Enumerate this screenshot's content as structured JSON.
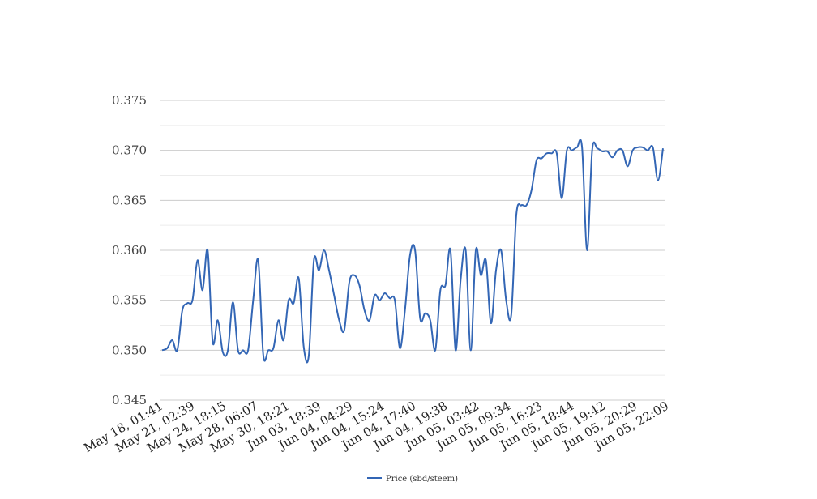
{
  "chart_data": {
    "type": "line",
    "title": "",
    "xlabel": "",
    "ylabel": "",
    "ylim": [
      0.345,
      0.375
    ],
    "y_ticks": [
      "0.345",
      "0.350",
      "0.355",
      "0.360",
      "0.365",
      "0.370",
      "0.375"
    ],
    "x_tick_labels": [
      "May 18, 01:41",
      "May 21, 02:39",
      "May 24, 18:15",
      "May 28, 06:07",
      "May 30, 18:21",
      "Jun 03, 18:39",
      "Jun 04, 04:29",
      "Jun 04, 15:24",
      "Jun 04, 17:40",
      "Jun 04, 19:38",
      "Jun 05, 03:42",
      "Jun 05, 09:34",
      "Jun 05, 16:23",
      "Jun 05, 18:44",
      "Jun 05, 19:42",
      "Jun 05, 20:29",
      "Jun 05, 22:09"
    ],
    "grid": true,
    "legend_position": "bottom",
    "series": [
      {
        "name": "Price (sbd/steem)",
        "color": "#3366b5",
        "values": [
          0.35,
          0.3502,
          0.351,
          0.35,
          0.354,
          0.3547,
          0.355,
          0.359,
          0.356,
          0.36,
          0.3508,
          0.353,
          0.3498,
          0.35,
          0.3548,
          0.35,
          0.35,
          0.35,
          0.355,
          0.359,
          0.3495,
          0.35,
          0.3502,
          0.353,
          0.351,
          0.355,
          0.3547,
          0.3572,
          0.3503,
          0.3495,
          0.359,
          0.358,
          0.36,
          0.358,
          0.3555,
          0.353,
          0.352,
          0.3568,
          0.3575,
          0.3565,
          0.354,
          0.353,
          0.3555,
          0.355,
          0.3557,
          0.3552,
          0.355,
          0.3502,
          0.354,
          0.3595,
          0.36,
          0.3532,
          0.3537,
          0.353,
          0.35,
          0.356,
          0.3565,
          0.36,
          0.35,
          0.357,
          0.36,
          0.35,
          0.36,
          0.3575,
          0.359,
          0.3527,
          0.358,
          0.36,
          0.355,
          0.3535,
          0.3635,
          0.3645,
          0.3645,
          0.366,
          0.369,
          0.3692,
          0.3697,
          0.3697,
          0.3697,
          0.3652,
          0.37,
          0.37,
          0.3703,
          0.3703,
          0.36,
          0.37,
          0.3702,
          0.3699,
          0.3699,
          0.3693,
          0.37,
          0.37,
          0.3684,
          0.37,
          0.3703,
          0.3703,
          0.37,
          0.3703,
          0.367,
          0.3702
        ]
      }
    ]
  }
}
